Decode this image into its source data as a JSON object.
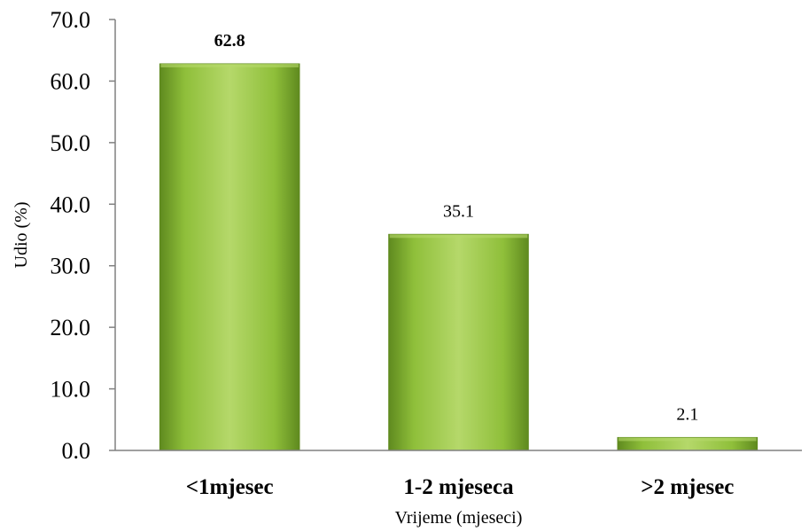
{
  "chart_data": {
    "type": "bar",
    "categories": [
      "<1mjesec",
      "1-2 mjeseca",
      ">2 mjesec"
    ],
    "values": [
      62.8,
      35.1,
      2.1
    ],
    "data_labels": [
      "62.8",
      "35.1",
      "2.1"
    ],
    "highlighted_label_index": 0,
    "title": "",
    "xlabel": "Vrijeme (mjeseci)",
    "ylabel": "Udio (%)",
    "ylim": [
      0,
      70
    ],
    "yticks": [
      "0.0",
      "10.0",
      "20.0",
      "30.0",
      "40.0",
      "50.0",
      "60.0",
      "70.0"
    ],
    "ytick_values": [
      0,
      10,
      20,
      30,
      40,
      50,
      60,
      70
    ],
    "grid": false,
    "legend": "none",
    "colors": {
      "bar_light": "#b5d86a",
      "bar_mid": "#8fbf3a",
      "bar_dark": "#5f8a1f",
      "axis": "#808080"
    }
  }
}
